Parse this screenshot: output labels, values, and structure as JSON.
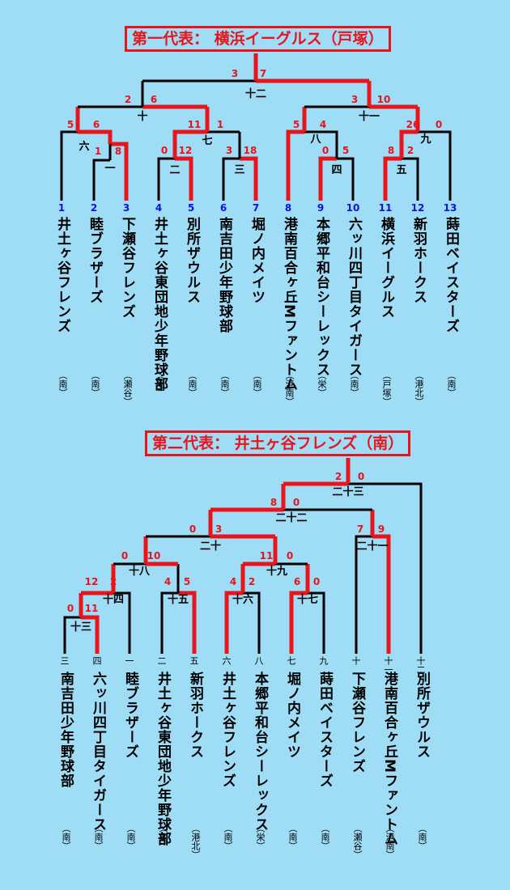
{
  "bracket1": {
    "title": "第一代表： 横浜イーグルス（戸塚）",
    "numbers": [
      "1",
      "2",
      "3",
      "4",
      "5",
      "6",
      "7",
      "8",
      "9",
      "10",
      "11",
      "12",
      "13"
    ],
    "teams": [
      "井土ヶ谷フレンズ",
      "睦ブラザーズ",
      "下瀬谷フレンズ",
      "井土ヶ谷東団地少年野球部",
      "別所ザウルス",
      "南吉田少年野球部",
      "堀ノ内メイツ",
      "港南百合ヶ丘Mファントム",
      "本郷平和台シーレックス",
      "六ッ川四丁目タイガース",
      "横浜イーグルス",
      "新羽ホークス",
      "蒔田ベイスターズ"
    ],
    "districts": [
      "（南）",
      "（南）",
      "（瀬谷）",
      "（南）",
      "（南）",
      "（南）",
      "（南）",
      "（港南）",
      "（栄）",
      "（南）",
      "（戸塚）",
      "（港北）",
      "（南）"
    ],
    "games": [
      "一",
      "二",
      "三",
      "四",
      "五",
      "六",
      "七",
      "八",
      "九",
      "十",
      "十一",
      "十二"
    ],
    "scores": [
      "1",
      "8",
      "0",
      "12",
      "3",
      "18",
      "5",
      "0",
      "8",
      "2",
      "5",
      "6",
      "11",
      "1",
      "5",
      "4",
      "26",
      "0",
      "2",
      "6",
      "3",
      "10",
      "3",
      "7"
    ]
  },
  "bracket2": {
    "title": "第二代表： 井土ヶ谷フレンズ（南）",
    "game_nums": [
      "三",
      "四",
      "一",
      "二",
      "五",
      "六",
      "八",
      "七",
      "九",
      "十",
      "十一",
      "十二"
    ],
    "teams": [
      "南吉田少年野球部",
      "六ッ川四丁目タイガース",
      "睦ブラザーズ",
      "井土ヶ谷東団地少年野球部",
      "新羽ホークス",
      "井土ヶ谷フレンズ",
      "本郷平和台シーレックス",
      "堀ノ内メイツ",
      "蒔田ベイスターズ",
      "下瀬谷フレンズ",
      "港南百合ヶ丘Mファントム",
      "別所ザウルス"
    ],
    "districts": [
      "（南）",
      "（南）",
      "（南）",
      "（南）",
      "（港北）",
      "（南）",
      "（栄）",
      "（南）",
      "（南）",
      "（瀬谷）",
      "（港南）",
      "（南）"
    ],
    "games": [
      "十三",
      "十四",
      "十五",
      "十六",
      "十七",
      "十八",
      "十九",
      "二十",
      "二十一",
      "二十二",
      "二十三"
    ],
    "scores": [
      "0",
      "11",
      "12",
      "2",
      "4",
      "5",
      "4",
      "2",
      "6",
      "0",
      "0",
      "10",
      "11",
      "0",
      "7",
      "9",
      "0",
      "3",
      "8",
      "0",
      "2",
      "0"
    ]
  },
  "colors": {
    "win": "#e8141b",
    "line": "#000000",
    "number": "#1010dd",
    "background": "#9fdcf6"
  }
}
